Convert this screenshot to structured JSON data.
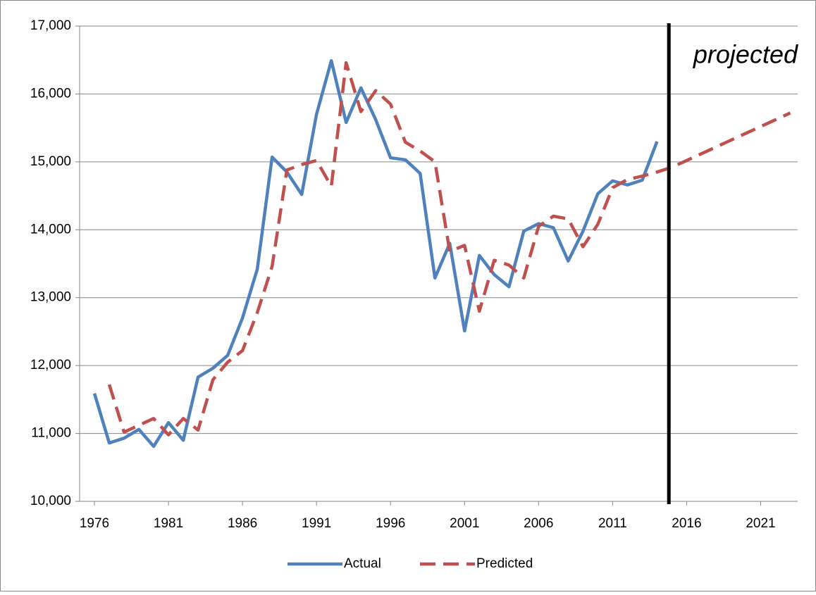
{
  "chart_data": {
    "type": "line",
    "x": [
      1976,
      1977,
      1978,
      1979,
      1980,
      1981,
      1982,
      1983,
      1984,
      1985,
      1986,
      1987,
      1988,
      1989,
      1990,
      1991,
      1992,
      1993,
      1994,
      1995,
      1996,
      1997,
      1998,
      1999,
      2000,
      2001,
      2002,
      2003,
      2004,
      2005,
      2006,
      2007,
      2008,
      2009,
      2010,
      2011,
      2012,
      2013,
      2014,
      2015,
      2016,
      2017,
      2018,
      2019,
      2020,
      2021,
      2022,
      2023
    ],
    "series": [
      {
        "name": "Actual",
        "color": "#4f81bd",
        "dash": false,
        "values": [
          11590,
          10860,
          10930,
          11060,
          10810,
          11160,
          10900,
          11830,
          11960,
          12150,
          12700,
          13420,
          15070,
          14850,
          14520,
          15700,
          16490,
          15580,
          16090,
          15620,
          15060,
          15030,
          14830,
          13290,
          13800,
          12510,
          13620,
          13340,
          13160,
          13980,
          14090,
          14030,
          13540,
          13980,
          14530,
          14720,
          14660,
          14730,
          15300,
          null,
          null,
          null,
          null,
          null,
          null,
          null,
          null,
          null
        ]
      },
      {
        "name": "Predicted",
        "color": "#c0504d",
        "dash": true,
        "values": [
          null,
          11720,
          11020,
          11120,
          11220,
          10980,
          11220,
          11050,
          11790,
          12050,
          12220,
          12780,
          13460,
          14880,
          14960,
          15020,
          14640,
          16460,
          15740,
          16050,
          15850,
          15290,
          15160,
          15000,
          13680,
          13770,
          12800,
          13550,
          13480,
          13290,
          14050,
          14200,
          14160,
          13750,
          14080,
          14620,
          14740,
          14790,
          14850,
          14920,
          15020,
          15120,
          15220,
          15320,
          15420,
          15520,
          15620,
          15720
        ]
      }
    ],
    "xlim": [
      1975,
      2023.5
    ],
    "xticks": [
      1976,
      1981,
      1986,
      1991,
      1996,
      2001,
      2006,
      2011,
      2016,
      2021
    ],
    "ylim": [
      10000,
      17000
    ],
    "yticks": [
      {
        "value": 10000,
        "label": "10,000"
      },
      {
        "value": 11000,
        "label": "11,000"
      },
      {
        "value": 12000,
        "label": "12,000"
      },
      {
        "value": 13000,
        "label": "13,000"
      },
      {
        "value": 14000,
        "label": "14,000"
      },
      {
        "value": 15000,
        "label": "15,000"
      },
      {
        "value": 16000,
        "label": "16,000"
      },
      {
        "value": 17000,
        "label": "17,000"
      }
    ],
    "grid": true,
    "divider_x": 2014.8,
    "annotation": "projected",
    "legend": "bottom"
  }
}
